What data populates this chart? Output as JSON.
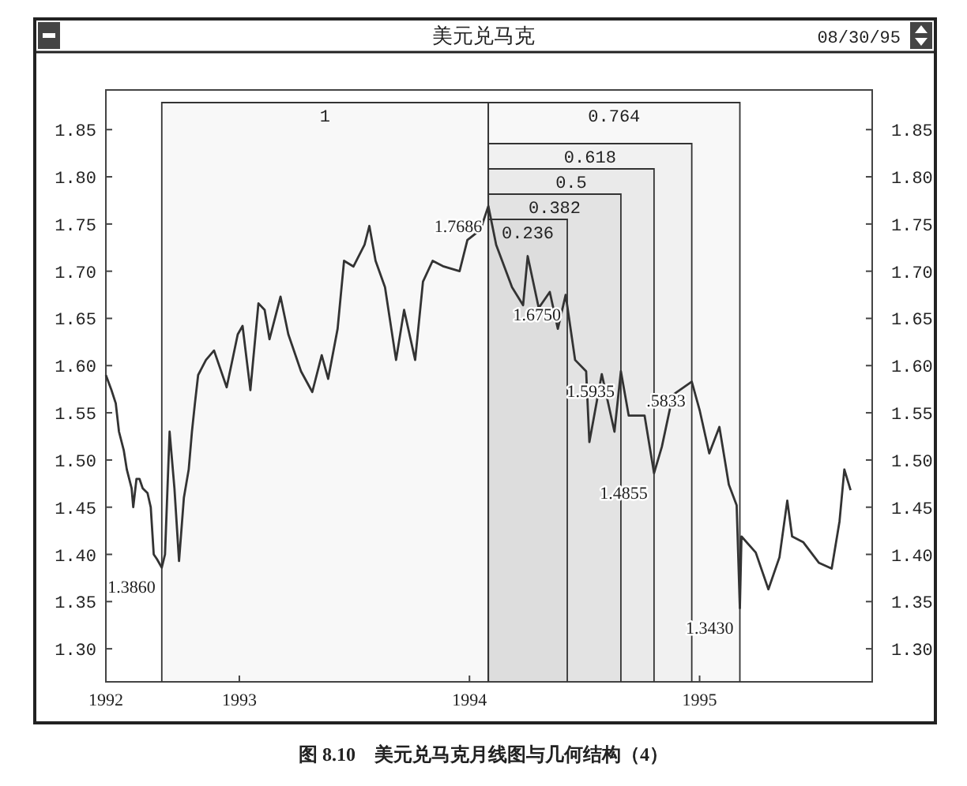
{
  "chart_data": {
    "type": "line",
    "title": "美元兑马克",
    "subtitle": "08/30/95",
    "xlim": [
      1992.42,
      1995.75
    ],
    "xticks": [
      {
        "value": 1992.42,
        "label": "1992"
      },
      1993,
      1994,
      1995
    ],
    "ylim": [
      1.265,
      1.892
    ],
    "yticks": [
      {
        "value": 1.3,
        "label": "1.30"
      },
      1.35,
      {
        "value": 1.4,
        "label": "1.40"
      },
      1.45,
      {
        "value": 1.5,
        "label": "1.50"
      },
      1.55,
      {
        "value": 1.6,
        "label": "1.60"
      },
      1.65,
      {
        "value": 1.7,
        "label": "1.70"
      },
      1.75,
      {
        "value": 1.8,
        "label": "1.80"
      },
      1.85
    ],
    "y2lim": [
      1.265,
      1.892
    ],
    "y2ticks": [
      {
        "value": 1.3,
        "label": "1.30"
      },
      1.35,
      {
        "value": 1.4,
        "label": "1.40"
      },
      1.45,
      {
        "value": 1.5,
        "label": "1.50"
      },
      1.55,
      {
        "value": 1.6,
        "label": "1.60"
      },
      1.65,
      {
        "value": 1.7,
        "label": "1.70"
      },
      1.75,
      {
        "value": 1.8,
        "label": "1.80"
      },
      1.85
    ],
    "series": [
      {
        "color": "#333333",
        "x": [
          1992.42,
          1992.443,
          1992.463,
          1992.477,
          1992.498,
          1992.511,
          1992.532,
          1992.539,
          1992.553,
          1992.566,
          1992.58,
          1992.601,
          1992.615,
          1992.628,
          1992.642,
          1992.663,
          1992.677,
          1992.697,
          1992.718,
          1992.738,
          1992.759,
          1992.78,
          1992.794,
          1992.807,
          1992.821,
          1992.855,
          1992.89,
          1992.945,
          1992.993,
          1993.014,
          1993.048,
          1993.083,
          1993.11,
          1993.131,
          1993.179,
          1993.213,
          1993.268,
          1993.317,
          1993.358,
          1993.386,
          1993.427,
          1993.455,
          1993.496,
          1993.544,
          1993.565,
          1993.592,
          1993.633,
          1993.681,
          1993.716,
          1993.764,
          1993.798,
          1993.84,
          1993.888,
          1993.957,
          1993.991,
          1994.048,
          1994.082,
          1994.116,
          1994.185,
          1994.233,
          1994.253,
          1994.301,
          1994.349,
          1994.384,
          1994.418,
          1994.459,
          1994.507,
          1994.521,
          1994.575,
          1994.63,
          1994.658,
          1994.692,
          1994.761,
          1994.802,
          1994.836,
          1994.884,
          1994.966,
          1995.001,
          1995.042,
          1995.086,
          1995.127,
          1995.161,
          1995.175,
          1995.182,
          1995.244,
          1995.299,
          1995.347,
          1995.381,
          1995.402,
          1995.45,
          1995.519,
          1995.574,
          1995.608,
          1995.629,
          1995.656
        ],
        "values": [
          1.59,
          1.575,
          1.56,
          1.53,
          1.51,
          1.49,
          1.47,
          1.45,
          1.48,
          1.48,
          1.47,
          1.465,
          1.45,
          1.4,
          1.395,
          1.386,
          1.4,
          1.53,
          1.47,
          1.393,
          1.46,
          1.49,
          1.53,
          1.56,
          1.59,
          1.606,
          1.616,
          1.577,
          1.633,
          1.642,
          1.574,
          1.666,
          1.659,
          1.628,
          1.673,
          1.633,
          1.594,
          1.572,
          1.611,
          1.586,
          1.639,
          1.711,
          1.705,
          1.728,
          1.748,
          1.711,
          1.683,
          1.606,
          1.659,
          1.606,
          1.689,
          1.711,
          1.705,
          1.7,
          1.733,
          1.744,
          1.769,
          1.728,
          1.683,
          1.664,
          1.716,
          1.661,
          1.678,
          1.639,
          1.675,
          1.606,
          1.594,
          1.519,
          1.591,
          1.53,
          1.594,
          1.547,
          1.547,
          1.486,
          1.514,
          1.569,
          1.583,
          1.552,
          1.507,
          1.535,
          1.474,
          1.452,
          1.343,
          1.419,
          1.402,
          1.363,
          1.397,
          1.457,
          1.419,
          1.413,
          1.391,
          1.385,
          1.435,
          1.49,
          1.468
        ]
      }
    ],
    "bands": [
      {
        "axis": "x",
        "from": 1992.663,
        "to": 1994.082,
        "label": "1"
      },
      {
        "axis": "x",
        "from": 1994.082,
        "to": 1995.175,
        "label": "0.764"
      },
      {
        "axis": "x",
        "from": 1994.082,
        "to": 1994.966,
        "label": "0.618"
      },
      {
        "axis": "x",
        "from": 1994.082,
        "to": 1994.802,
        "label": "0.5"
      },
      {
        "axis": "x",
        "from": 1994.082,
        "to": 1994.658,
        "label": "0.382"
      },
      {
        "axis": "x",
        "from": 1994.082,
        "to": 1994.425,
        "label": "0.236"
      }
    ],
    "annotations": [
      {
        "text": "1.7686",
        "x": 1994.082,
        "y": 1.7686
      },
      {
        "text": "1.6750",
        "x": 1994.425,
        "y": 1.675
      },
      {
        "text": "1.5935",
        "x": 1994.658,
        "y": 1.5935
      },
      {
        "text": ".5833",
        "x": 1994.966,
        "y": 1.5833
      },
      {
        "text": "1.4855",
        "x": 1994.802,
        "y": 1.4855
      },
      {
        "text": "1.3430",
        "x": 1995.175,
        "y": 1.343
      },
      {
        "text": "1.3860",
        "x": 1992.663,
        "y": 1.386
      },
      "图 8.10　美元兑马克月线图与几何结构（4）"
    ]
  }
}
